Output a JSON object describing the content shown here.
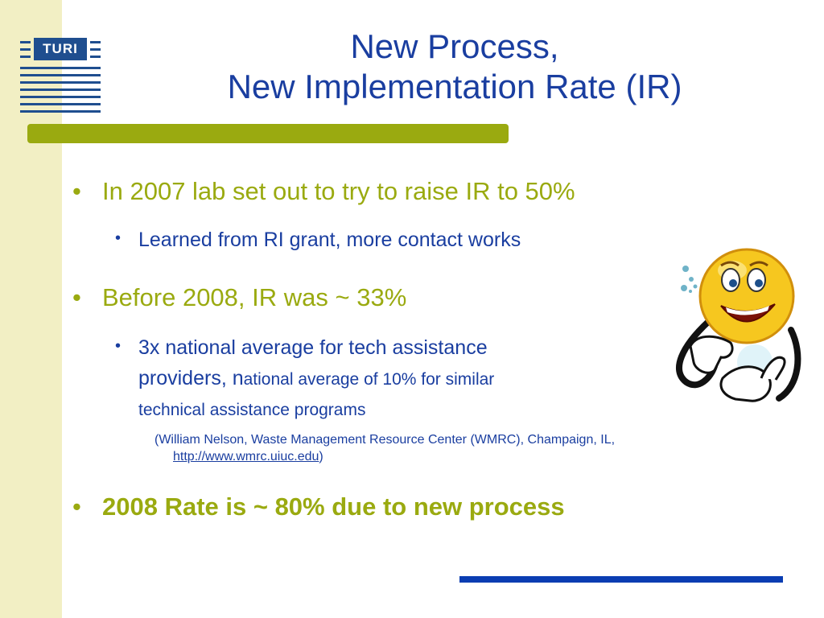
{
  "logo": {
    "text": "TURI"
  },
  "title": {
    "line1": "New Process,",
    "line2": "New Implementation Rate (IR)"
  },
  "bullets": {
    "b1": "In 2007 lab set out to try to raise IR to 50%",
    "b1_sub": "Learned from RI grant, more contact works",
    "b2": "Before 2008, IR was ~ 33%",
    "b2_sub_line1": "3x national average for tech assistance",
    "b2_sub_line2_big": "providers, n",
    "b2_sub_line2_small": "ational average of 10% for similar",
    "b2_sub_line3": "technical assistance programs",
    "citation_line1": "(William Nelson, Waste Management Resource Center (WMRC), Champaign, IL,",
    "citation_link": "http://www.wmrc.uiuc.edu",
    "citation_close": ")",
    "b3": "2008 Rate is ~ 80% due to new process"
  },
  "bullet_glyph": "•",
  "colors": {
    "title": "#1a3ea0",
    "accent_olive": "#9aaa10",
    "side_strip": "#f2efc4",
    "rule_blue": "#0a3db2"
  },
  "image": {
    "icon": "smiley-thumbs-up-icon"
  }
}
